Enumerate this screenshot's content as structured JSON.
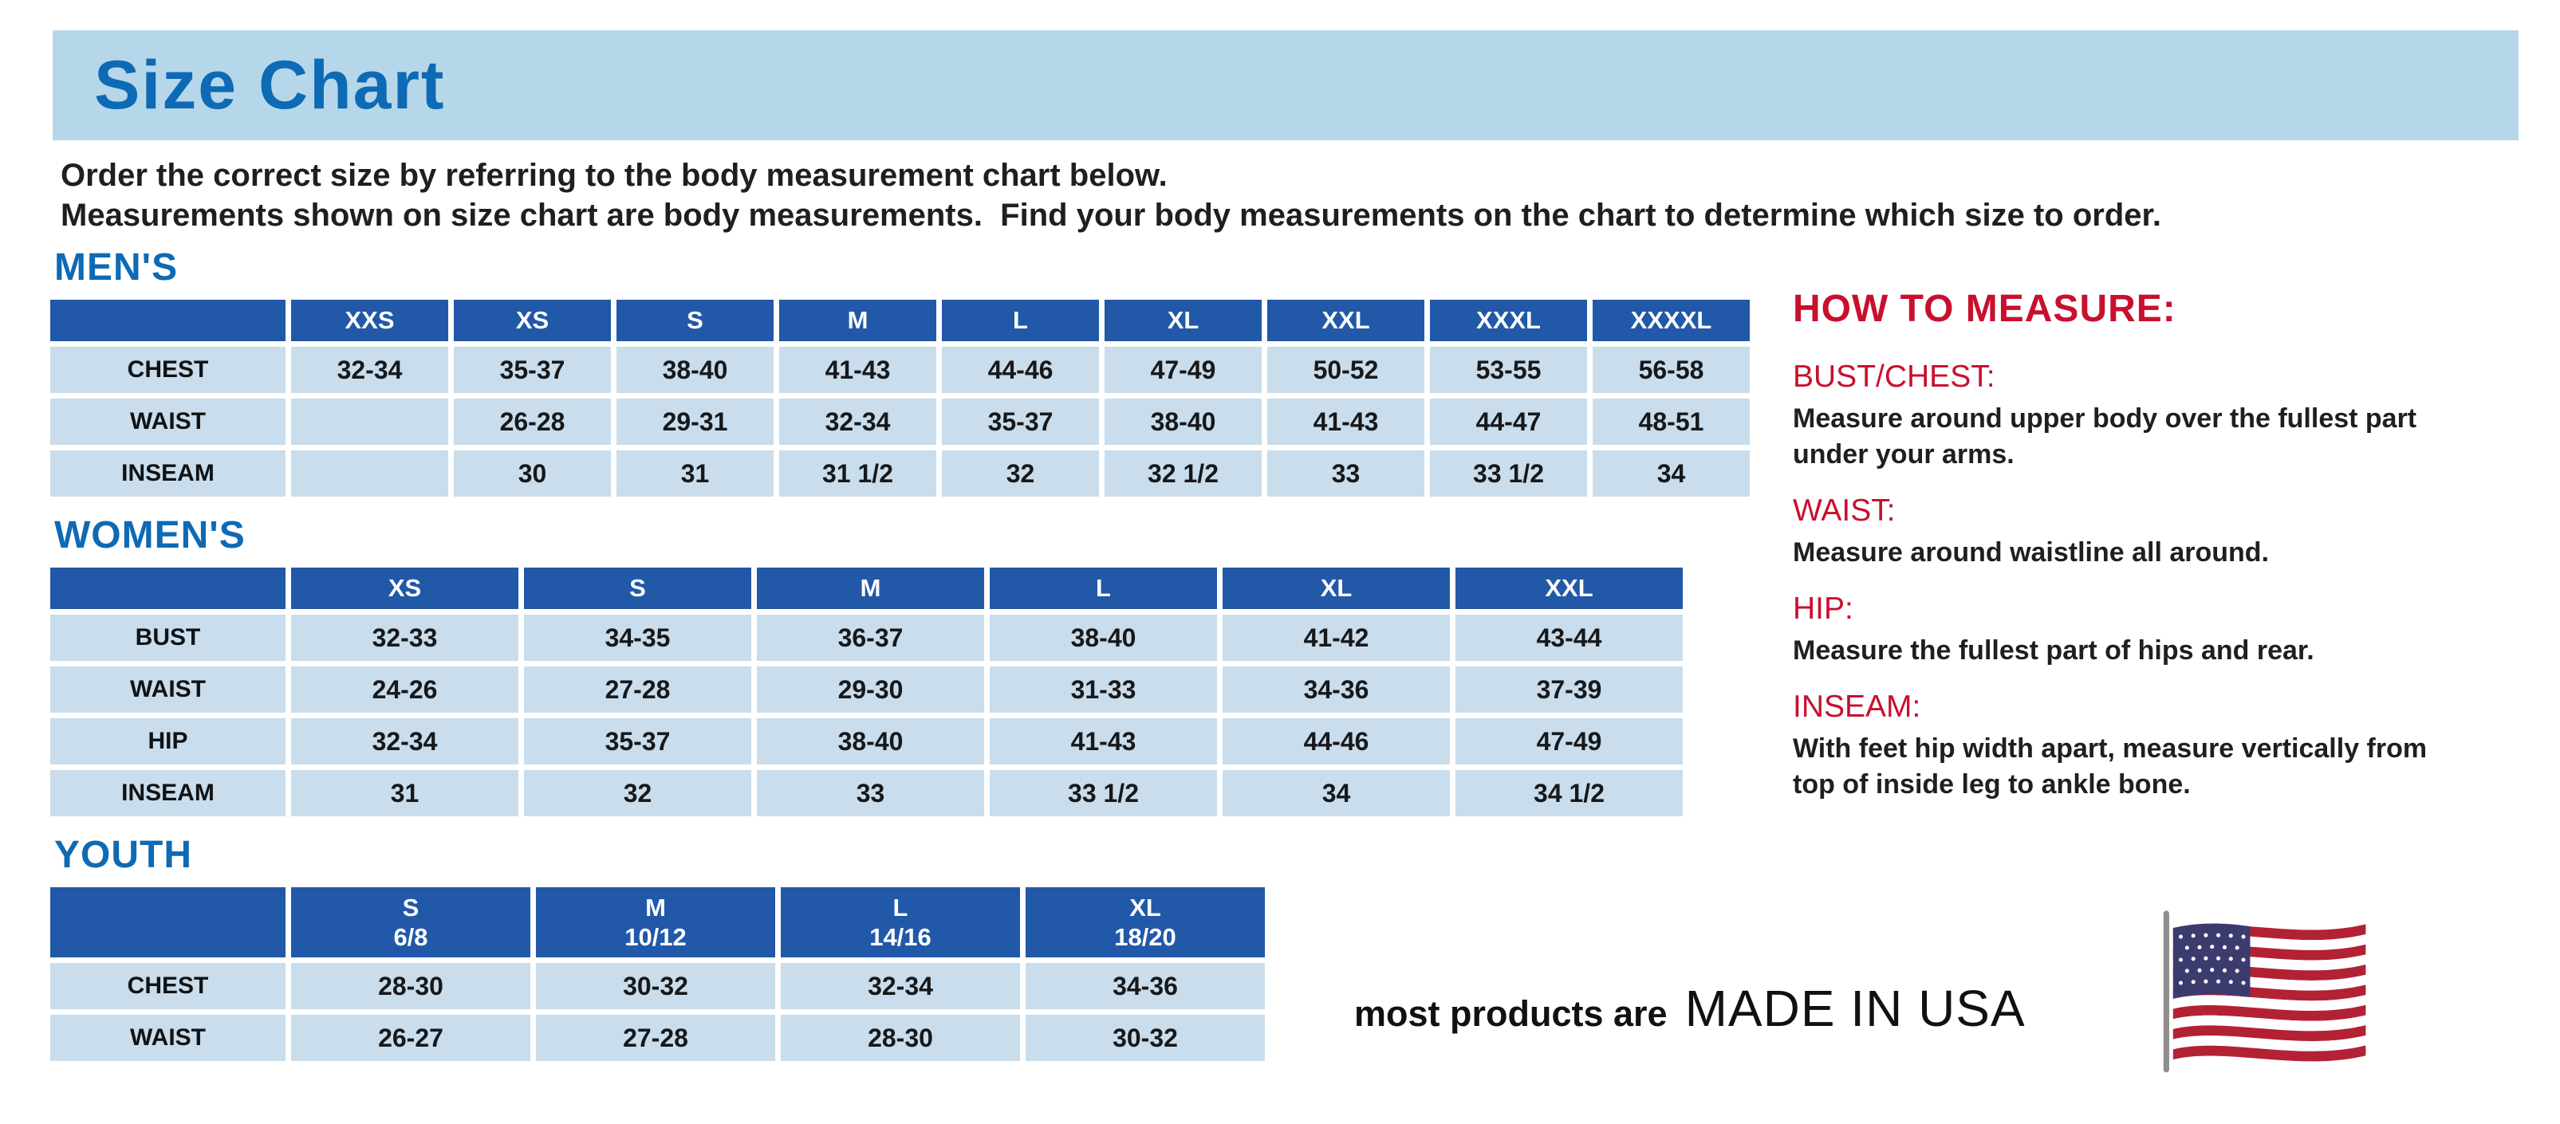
{
  "page": {
    "title": "Size Chart",
    "intro_line1": "Order the correct size by referring to the body measurement chart below.",
    "intro_line2": "Measurements shown on size chart are body measurements.  Find your body measurements on the chart to determine which size to order."
  },
  "tables": {
    "mens": {
      "section_title": "MEN'S",
      "columns": [
        "XXS",
        "XS",
        "S",
        "M",
        "L",
        "XL",
        "XXL",
        "XXXL",
        "XXXXL"
      ],
      "rows": [
        {
          "label": "CHEST",
          "values": [
            "32-34",
            "35-37",
            "38-40",
            "41-43",
            "44-46",
            "47-49",
            "50-52",
            "53-55",
            "56-58"
          ]
        },
        {
          "label": "WAIST",
          "values": [
            "",
            "26-28",
            "29-31",
            "32-34",
            "35-37",
            "38-40",
            "41-43",
            "44-47",
            "48-51"
          ]
        },
        {
          "label": "INSEAM",
          "values": [
            "",
            "30",
            "31",
            "31 1/2",
            "32",
            "32 1/2",
            "33",
            "33 1/2",
            "34"
          ]
        }
      ]
    },
    "womens": {
      "section_title": "WOMEN'S",
      "columns": [
        "XS",
        "S",
        "M",
        "L",
        "XL",
        "XXL"
      ],
      "rows": [
        {
          "label": "BUST",
          "values": [
            "32-33",
            "34-35",
            "36-37",
            "38-40",
            "41-42",
            "43-44"
          ]
        },
        {
          "label": "WAIST",
          "values": [
            "24-26",
            "27-28",
            "29-30",
            "31-33",
            "34-36",
            "37-39"
          ]
        },
        {
          "label": "HIP",
          "values": [
            "32-34",
            "35-37",
            "38-40",
            "41-43",
            "44-46",
            "47-49"
          ]
        },
        {
          "label": "INSEAM",
          "values": [
            "31",
            "32",
            "33",
            "33 1/2",
            "34",
            "34 1/2"
          ]
        }
      ]
    },
    "youth": {
      "section_title": "YOUTH",
      "columns": [
        "S\n6/8",
        "M\n10/12",
        "L\n14/16",
        "XL\n18/20"
      ],
      "rows": [
        {
          "label": "CHEST",
          "values": [
            "28-30",
            "30-32",
            "32-34",
            "34-36"
          ]
        },
        {
          "label": "WAIST",
          "values": [
            "26-27",
            "27-28",
            "28-30",
            "30-32"
          ]
        }
      ]
    }
  },
  "how_to_measure": {
    "title": "HOW TO MEASURE:",
    "items": [
      {
        "label": "BUST/CHEST:",
        "text": "Measure around upper body over the fullest part under your arms."
      },
      {
        "label": "WAIST:",
        "text": "Measure around waistline all around."
      },
      {
        "label": "HIP:",
        "text": "Measure the fullest part of hips and rear."
      },
      {
        "label": "INSEAM:",
        "text": "With feet hip width apart, measure vertically from top of inside leg to ankle bone."
      }
    ]
  },
  "footer": {
    "prefix": "most products are",
    "made_in": "MADE IN USA",
    "flag_icon": "us-flag-icon"
  },
  "colors": {
    "header_band_bg": "#b6d7ea",
    "title_blue": "#0e6ab4",
    "table_header_bg": "#2158a8",
    "table_cell_bg": "#c9ddec",
    "accent_red": "#c8102e",
    "flag_red": "#b22234",
    "flag_blue": "#3c3b6e"
  }
}
